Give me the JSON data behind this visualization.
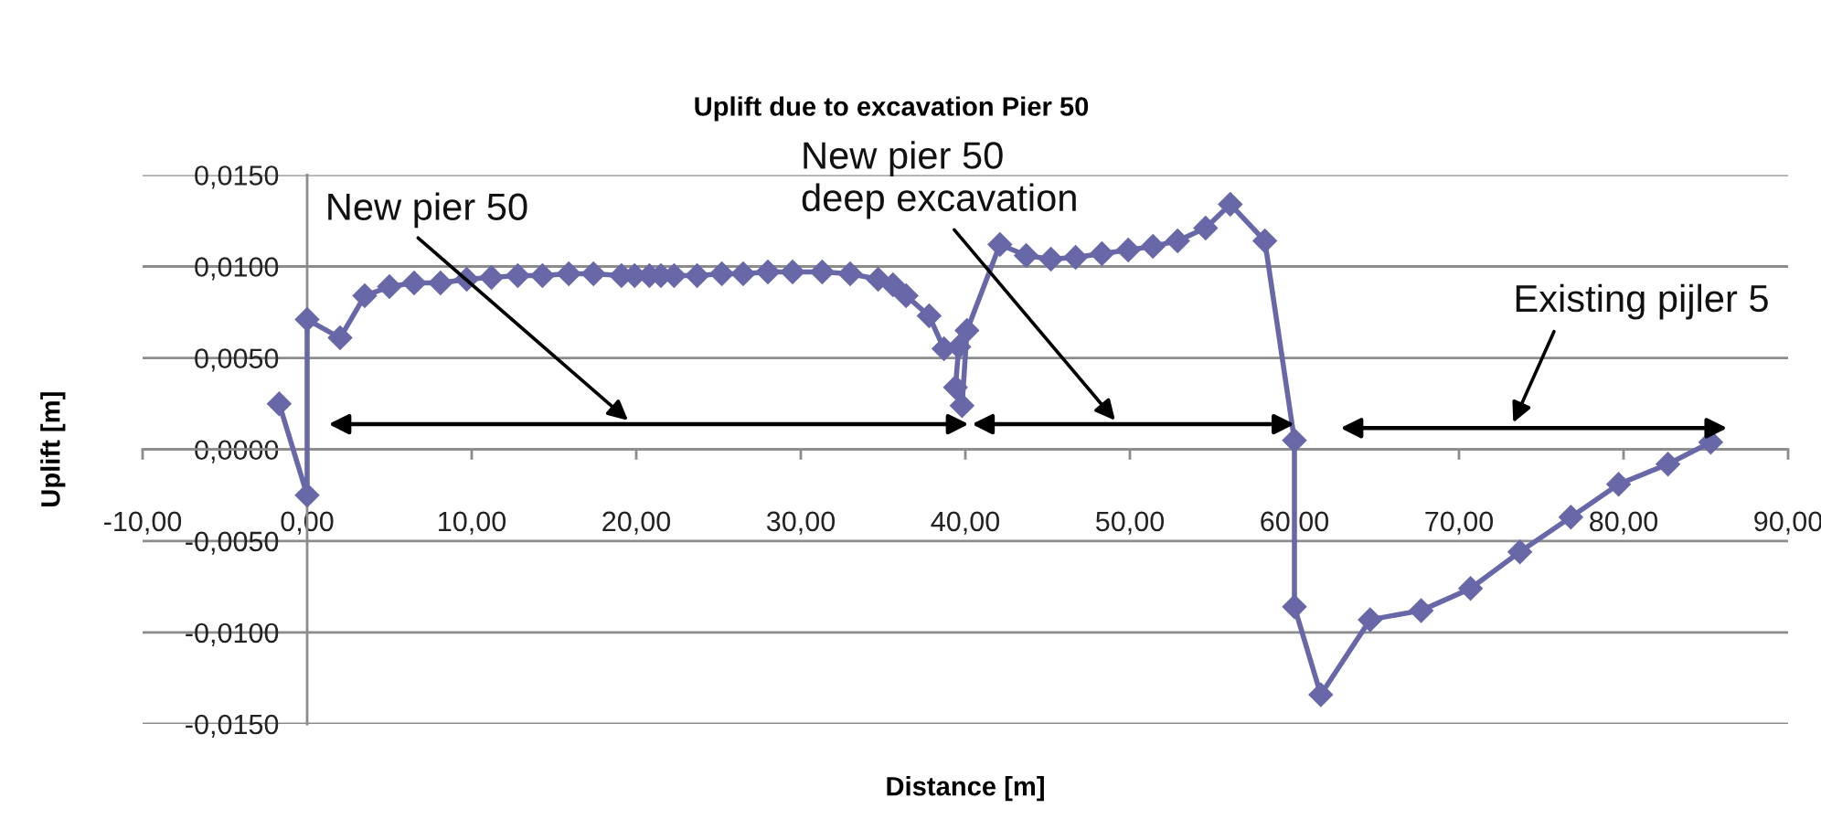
{
  "chart_data": {
    "type": "line",
    "title": "Uplift due to excavation Pier 50",
    "xlabel": "Distance [m]",
    "ylabel": "Uplift [m]",
    "x": [
      -1.7,
      0.0,
      0.0,
      2.0,
      3.5,
      5.0,
      6.5,
      8.1,
      9.7,
      11.2,
      12.8,
      14.3,
      15.9,
      17.4,
      19.1,
      19.9,
      20.8,
      21.5,
      22.3,
      23.7,
      25.2,
      26.5,
      28.0,
      29.5,
      31.3,
      33.0,
      34.7,
      35.6,
      36.4,
      37.8,
      38.7,
      39.6,
      39.4,
      39.8,
      40.1,
      42.1,
      43.7,
      45.2,
      46.7,
      48.3,
      49.9,
      51.4,
      52.9,
      54.6,
      56.1,
      58.2,
      60.0,
      60.0,
      61.6,
      64.6,
      67.7,
      70.7,
      73.7,
      76.8,
      79.7,
      82.7,
      85.3
    ],
    "values": [
      0.0025,
      -0.0025,
      0.0071,
      0.0061,
      0.0084,
      0.0089,
      0.0091,
      0.0091,
      0.0093,
      0.0094,
      0.0095,
      0.0095,
      0.0096,
      0.0096,
      0.0095,
      0.0095,
      0.0095,
      0.0095,
      0.0095,
      0.0095,
      0.0096,
      0.0096,
      0.0097,
      0.0097,
      0.0097,
      0.0096,
      0.0093,
      0.009,
      0.0084,
      0.0073,
      0.0055,
      0.0056,
      0.0034,
      0.0024,
      0.0065,
      0.0112,
      0.0106,
      0.0104,
      0.0105,
      0.0107,
      0.0109,
      0.0111,
      0.0114,
      0.0121,
      0.0134,
      0.0114,
      0.0005,
      -0.0086,
      -0.0134,
      -0.0093,
      -0.0088,
      -0.0076,
      -0.0056,
      -0.0037,
      -0.0019,
      -0.0008,
      0.0004
    ],
    "color": "#6868a8",
    "marker": "diamond",
    "line_style": "solid",
    "xlim": [
      -10,
      90
    ],
    "ylim": [
      -0.015,
      0.015
    ],
    "xticks": [
      {
        "value": -10,
        "label": "-10,00"
      },
      {
        "value": 0,
        "label": "0,00"
      },
      {
        "value": 10,
        "label": "10,00"
      },
      {
        "value": 20,
        "label": "20,00"
      },
      {
        "value": 30,
        "label": "30,00"
      },
      {
        "value": 40,
        "label": "40,00"
      },
      {
        "value": 50,
        "label": "50,00"
      },
      {
        "value": 60,
        "label": "60,00"
      },
      {
        "value": 70,
        "label": "70,00"
      },
      {
        "value": 80,
        "label": "80,00"
      },
      {
        "value": 90,
        "label": "90,00"
      }
    ],
    "yticks": [
      {
        "value": -0.015,
        "label": "-0,0150"
      },
      {
        "value": -0.01,
        "label": "-0,0100"
      },
      {
        "value": -0.005,
        "label": "-0,0050"
      },
      {
        "value": 0,
        "label": "0,0000"
      },
      {
        "value": 0.005,
        "label": "0,0050"
      },
      {
        "value": 0.01,
        "label": "0,0100"
      },
      {
        "value": 0.015,
        "label": "0,0150"
      }
    ],
    "grid": "y",
    "annotations": [
      "New pier 50",
      "New pier 50\ndeep excavation",
      "Existing pijler 5"
    ]
  }
}
